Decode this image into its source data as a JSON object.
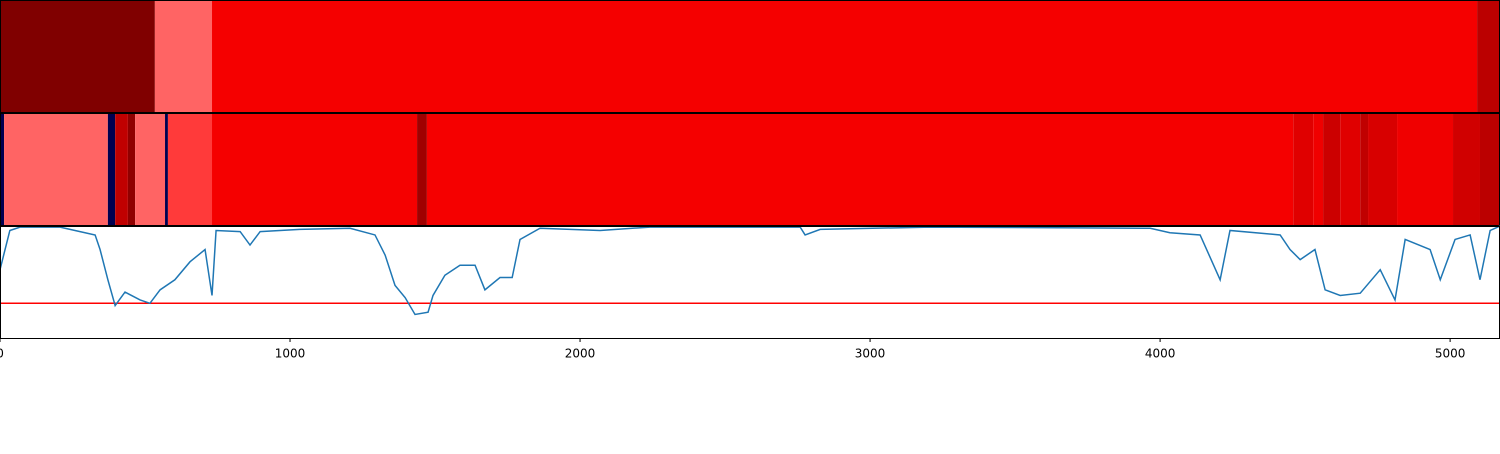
{
  "chart_data": [
    {
      "type": "strip",
      "xlim": [
        0,
        5172
      ],
      "segments": [
        {
          "start": 0,
          "end": 534,
          "color": "#800000"
        },
        {
          "start": 534,
          "end": 731,
          "color": "#ff6464"
        },
        {
          "start": 731,
          "end": 5093,
          "color": "#f50000"
        },
        {
          "start": 5093,
          "end": 5172,
          "color": "#bb0000"
        }
      ]
    },
    {
      "type": "strip",
      "xlim": [
        0,
        5172
      ],
      "segments": [
        {
          "start": 0,
          "end": 14,
          "color": "#000050"
        },
        {
          "start": 14,
          "end": 372,
          "color": "#ff6464"
        },
        {
          "start": 372,
          "end": 397,
          "color": "#000050"
        },
        {
          "start": 397,
          "end": 441,
          "color": "#c00000"
        },
        {
          "start": 441,
          "end": 466,
          "color": "#900000"
        },
        {
          "start": 466,
          "end": 569,
          "color": "#ff6464"
        },
        {
          "start": 569,
          "end": 579,
          "color": "#000050"
        },
        {
          "start": 579,
          "end": 731,
          "color": "#ff3a3a"
        },
        {
          "start": 731,
          "end": 1438,
          "color": "#f50000"
        },
        {
          "start": 1438,
          "end": 1472,
          "color": "#a00000"
        },
        {
          "start": 1472,
          "end": 4459,
          "color": "#f50000"
        },
        {
          "start": 4459,
          "end": 4528,
          "color": "#e00000"
        },
        {
          "start": 4528,
          "end": 4562,
          "color": "#f00000"
        },
        {
          "start": 4562,
          "end": 4621,
          "color": "#cc0000"
        },
        {
          "start": 4621,
          "end": 4690,
          "color": "#e00000"
        },
        {
          "start": 4690,
          "end": 4717,
          "color": "#c00000"
        },
        {
          "start": 4717,
          "end": 4817,
          "color": "#d80000"
        },
        {
          "start": 4817,
          "end": 5010,
          "color": "#f00000"
        },
        {
          "start": 5010,
          "end": 5103,
          "color": "#d00000"
        },
        {
          "start": 5103,
          "end": 5172,
          "color": "#bb0000"
        }
      ]
    },
    {
      "type": "line",
      "xlim": [
        0,
        5172
      ],
      "ylim": [
        0,
        1
      ],
      "xticks": [
        0,
        1000,
        2000,
        3000,
        4000,
        5000
      ],
      "x": [
        0,
        34,
        69,
        207,
        276,
        328,
        345,
        372,
        397,
        431,
        483,
        517,
        552,
        603,
        655,
        707,
        731,
        745,
        828,
        862,
        897,
        1034,
        1207,
        1293,
        1328,
        1362,
        1397,
        1431,
        1476,
        1493,
        1534,
        1586,
        1638,
        1672,
        1724,
        1766,
        1793,
        1862,
        2069,
        2241,
        2759,
        2776,
        2828,
        3207,
        3966,
        4034,
        4138,
        4207,
        4241,
        4414,
        4448,
        4483,
        4534,
        4569,
        4621,
        4690,
        4759,
        4810,
        4845,
        4931,
        4966,
        5017,
        5069,
        5103,
        5138,
        5172
      ],
      "values": [
        0.61,
        0.96,
        0.99,
        0.99,
        0.95,
        0.92,
        0.79,
        0.52,
        0.29,
        0.41,
        0.34,
        0.31,
        0.43,
        0.52,
        0.68,
        0.79,
        0.38,
        0.96,
        0.95,
        0.83,
        0.95,
        0.97,
        0.98,
        0.92,
        0.74,
        0.47,
        0.36,
        0.21,
        0.23,
        0.38,
        0.56,
        0.65,
        0.65,
        0.43,
        0.54,
        0.54,
        0.88,
        0.98,
        0.96,
        0.99,
        0.99,
        0.92,
        0.97,
        0.99,
        0.98,
        0.94,
        0.92,
        0.52,
        0.96,
        0.92,
        0.79,
        0.7,
        0.79,
        0.43,
        0.38,
        0.4,
        0.61,
        0.34,
        0.88,
        0.79,
        0.52,
        0.88,
        0.92,
        0.52,
        0.96,
        1
      ],
      "color": "#1f77b4",
      "threshold": {
        "value": 0.31,
        "color": "#ff0000"
      }
    }
  ]
}
